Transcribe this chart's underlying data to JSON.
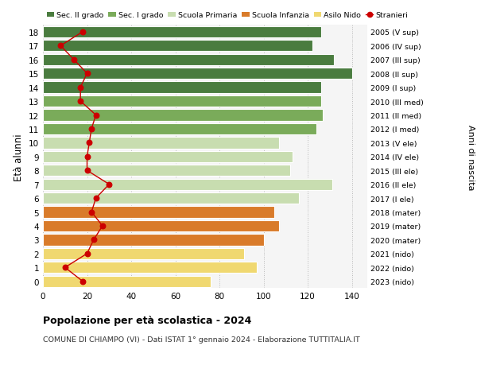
{
  "ages": [
    18,
    17,
    16,
    15,
    14,
    13,
    12,
    11,
    10,
    9,
    8,
    7,
    6,
    5,
    4,
    3,
    2,
    1,
    0
  ],
  "years": [
    "2005 (V sup)",
    "2006 (IV sup)",
    "2007 (III sup)",
    "2008 (II sup)",
    "2009 (I sup)",
    "2010 (III med)",
    "2011 (II med)",
    "2012 (I med)",
    "2013 (V ele)",
    "2014 (IV ele)",
    "2015 (III ele)",
    "2016 (II ele)",
    "2017 (I ele)",
    "2018 (mater)",
    "2019 (mater)",
    "2020 (mater)",
    "2021 (nido)",
    "2022 (nido)",
    "2023 (nido)"
  ],
  "bar_values": [
    126,
    122,
    132,
    140,
    126,
    126,
    127,
    124,
    107,
    113,
    112,
    131,
    116,
    105,
    107,
    100,
    91,
    97,
    76
  ],
  "bar_colors": [
    "#4a7c3f",
    "#4a7c3f",
    "#4a7c3f",
    "#4a7c3f",
    "#4a7c3f",
    "#7aab5a",
    "#7aab5a",
    "#7aab5a",
    "#c8ddb0",
    "#c8ddb0",
    "#c8ddb0",
    "#c8ddb0",
    "#c8ddb0",
    "#d97b2a",
    "#d97b2a",
    "#d97b2a",
    "#f0d870",
    "#f0d870",
    "#f0d870"
  ],
  "stranieri_values": [
    18,
    8,
    14,
    20,
    17,
    17,
    24,
    22,
    21,
    20,
    20,
    30,
    24,
    22,
    27,
    23,
    20,
    10,
    18
  ],
  "legend_labels": [
    "Sec. II grado",
    "Sec. I grado",
    "Scuola Primaria",
    "Scuola Infanzia",
    "Asilo Nido",
    "Stranieri"
  ],
  "legend_colors": [
    "#4a7c3f",
    "#7aab5a",
    "#c8ddb0",
    "#d97b2a",
    "#f0d870",
    "#cc0000"
  ],
  "title1": "Popolazione per età scolastica - 2024",
  "title2": "COMUNE DI CHIAMPO (VI) - Dati ISTAT 1° gennaio 2024 - Elaborazione TUTTITALIA.IT",
  "ylabel_left": "Età alunni",
  "ylabel_right": "Anni di nascita",
  "xlim": [
    0,
    147
  ],
  "xticks": [
    0,
    20,
    40,
    60,
    80,
    100,
    120,
    140
  ]
}
